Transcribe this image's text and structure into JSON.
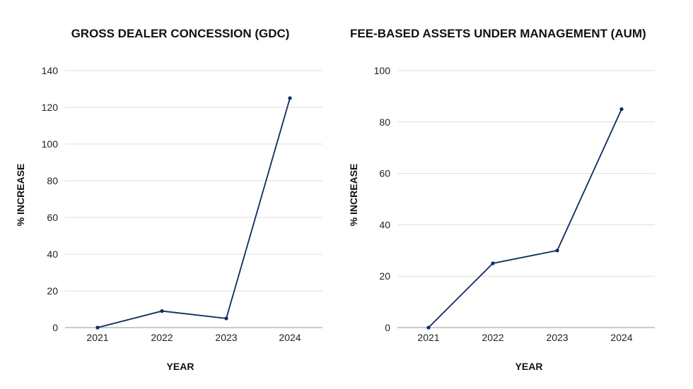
{
  "chart_data": [
    {
      "type": "line",
      "title": "GROSS DEALER CONCESSION (GDC)",
      "xlabel": "YEAR",
      "ylabel": "% INCREASE",
      "categories": [
        "2021",
        "2022",
        "2023",
        "2024"
      ],
      "series": [
        {
          "name": "GDC",
          "values": [
            0,
            9,
            5,
            125
          ]
        }
      ],
      "ylim": [
        0,
        140
      ],
      "yticks": [
        0,
        20,
        40,
        60,
        80,
        100,
        120,
        140
      ],
      "grid": true,
      "color": "#0d2c5c"
    },
    {
      "type": "line",
      "title": "FEE-BASED ASSETS UNDER MANAGEMENT (AUM)",
      "xlabel": "YEAR",
      "ylabel": "% INCREASE",
      "categories": [
        "2021",
        "2022",
        "2023",
        "2024"
      ],
      "series": [
        {
          "name": "AUM",
          "values": [
            0,
            25,
            30,
            85
          ]
        }
      ],
      "ylim": [
        0,
        100
      ],
      "yticks": [
        0,
        20,
        40,
        60,
        80,
        100
      ],
      "grid": true,
      "color": "#0d2c5c"
    }
  ]
}
